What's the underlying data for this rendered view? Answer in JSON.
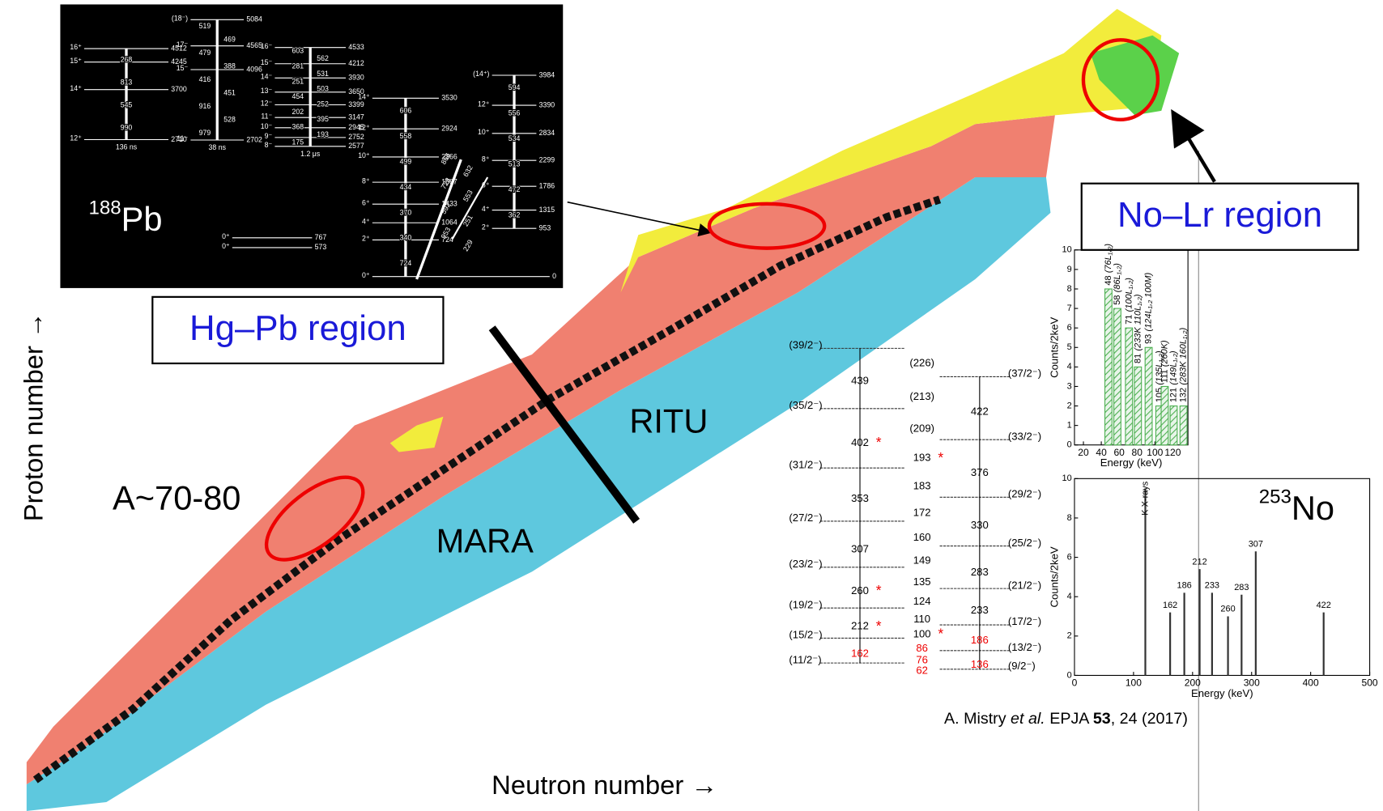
{
  "slide": {
    "axis_labels": {
      "y": "Proton number →",
      "x": "Neutron number →"
    },
    "regions": {
      "hg_pb": "Hg–Pb region",
      "no_lr": "No–Lr region",
      "a70": "A~70-80",
      "ritu": "RITU",
      "mara": "MARA"
    },
    "pb188": {
      "mass": "188",
      "symbol": "Pb",
      "columns": [
        {
          "levels": [
            {
              "spin": "16⁺",
              "energy": 4512
            },
            {
              "spin": "15⁺",
              "energy": 4245
            },
            {
              "spin": "14⁺",
              "energy": 3700
            },
            {
              "spin": "12⁺",
              "energy": 2710
            }
          ],
          "gammas": [
            "268",
            "813",
            "545",
            "990"
          ],
          "note": "136 ns"
        },
        {
          "levels": [
            {
              "spin": "(18⁻)",
              "energy": 5084
            },
            {
              "spin": "17⁻",
              "energy": 4565
            },
            {
              "spin": "15⁻",
              "energy": 4096
            },
            {
              "spin": "11⁻",
              "energy": 2702
            }
          ],
          "gammas": [
            "519",
            "469",
            "479",
            "388",
            "416",
            "451",
            "916",
            "528",
            "979"
          ],
          "note": "38 ns"
        },
        {
          "levels": [
            {
              "spin": "16⁻",
              "energy": 4533
            },
            {
              "spin": "15⁻",
              "energy": 4212
            },
            {
              "spin": "14⁻",
              "energy": 3930
            },
            {
              "spin": "13⁻",
              "energy": 3650
            },
            {
              "spin": "12⁻",
              "energy": 3399
            },
            {
              "spin": "11⁻",
              "energy": 3147
            },
            {
              "spin": "10⁻",
              "energy": 2945
            },
            {
              "spin": "9⁻",
              "energy": 2752
            },
            {
              "spin": "8⁻",
              "energy": 2577
            }
          ],
          "gammas": [
            "603",
            "562",
            "281",
            "531",
            "251",
            "503",
            "454",
            "252",
            "202",
            "395",
            "368",
            "193",
            "175"
          ],
          "note": "1.2 μs"
        },
        {
          "levels": [
            {
              "spin": "14⁺",
              "energy": 3530
            },
            {
              "spin": "12⁺",
              "energy": 2924
            },
            {
              "spin": "10⁺",
              "energy": 2366
            },
            {
              "spin": "8⁺",
              "energy": 1867
            },
            {
              "spin": "6⁺",
              "energy": 1433
            },
            {
              "spin": "4⁺",
              "energy": 1064
            },
            {
              "spin": "2⁺",
              "energy": 724
            },
            {
              "spin": "0⁺",
              "energy": 0
            }
          ],
          "gammas": [
            "606",
            "558",
            "499",
            "434",
            "370",
            "340",
            "724"
          ]
        },
        {
          "levels": [
            {
              "spin": "(14⁺)",
              "energy": 3984
            },
            {
              "spin": "12⁺",
              "energy": 3390
            },
            {
              "spin": "10⁺",
              "energy": 2834
            },
            {
              "spin": "8⁺",
              "energy": 2299
            },
            {
              "spin": "6⁺",
              "energy": 1786
            },
            {
              "spin": "4⁺",
              "energy": 1315
            },
            {
              "spin": "2⁺",
              "energy": 953
            }
          ],
          "gammas": [
            "594",
            "556",
            "534",
            "513",
            "472",
            "362"
          ]
        },
        {
          "levels": [
            {
              "spin": "0⁺",
              "energy": 767
            },
            {
              "spin": "0⁺",
              "energy": 573
            }
          ],
          "gammas": []
        }
      ],
      "crossing_gammas": [
        "866",
        "632",
        "723",
        "553",
        "592",
        "251",
        "953",
        "229"
      ]
    },
    "no253": {
      "mass": "253",
      "symbol": "No"
    },
    "level_scheme": {
      "spins_left": [
        "(39/2⁻)",
        "(35/2⁻)",
        "(31/2⁻)",
        "(27/2⁻)",
        "(23/2⁻)",
        "(19/2⁻)",
        "(15/2⁻)",
        "(11/2⁻)"
      ],
      "gammas_left": [
        {
          "label": "439"
        },
        {
          "label": "402",
          "marked": true
        },
        {
          "label": "353"
        },
        {
          "label": "307"
        },
        {
          "label": "260",
          "marked": true
        },
        {
          "label": "212",
          "marked": true
        },
        {
          "label": "162",
          "highlight": true
        }
      ],
      "gammas_middle": [
        {
          "label": "(226)"
        },
        {
          "label": "(213)"
        },
        {
          "label": "(209)"
        },
        {
          "label": "193",
          "marked": true
        },
        {
          "label": "183"
        },
        {
          "label": "172"
        },
        {
          "label": "160"
        },
        {
          "label": "149"
        },
        {
          "label": "135"
        },
        {
          "label": "124"
        },
        {
          "label": "110"
        },
        {
          "label": "100",
          "marked": true
        },
        {
          "label": "86",
          "highlight": true
        },
        {
          "label": "76",
          "highlight": true
        },
        {
          "label": "62",
          "highlight": true
        }
      ],
      "spins_right": [
        "(37/2⁻)",
        "(33/2⁻)",
        "(29/2⁻)",
        "(25/2⁻)",
        "(21/2⁻)",
        "(17/2⁻)",
        "(13/2⁻)",
        "(9/2⁻)"
      ],
      "gammas_right": [
        {
          "label": "422"
        },
        {
          "label": "376"
        },
        {
          "label": "330"
        },
        {
          "label": "283"
        },
        {
          "label": "233"
        },
        {
          "label": "186",
          "highlight": true
        },
        {
          "label": "136",
          "highlight": true
        }
      ]
    },
    "spectrum_top": {
      "y_label": "Counts/2keV",
      "x_label": "Energy (keV)",
      "xlim": [
        10,
        137
      ],
      "ylim": [
        0,
        10
      ],
      "xticks": [
        20,
        40,
        60,
        80,
        100,
        120
      ],
      "yticks": [
        0,
        1,
        2,
        3,
        4,
        5,
        6,
        7,
        8,
        9,
        10
      ],
      "color": "#4caf50",
      "peaks": [
        {
          "energy": 48,
          "counts": 8,
          "label": "(76L₁,₂)"
        },
        {
          "energy": 58,
          "counts": 7,
          "label": "(86L₁,₂)"
        },
        {
          "energy": 71,
          "counts": 6,
          "label": "(100L₁,₂)"
        },
        {
          "energy": 81,
          "counts": 4,
          "label": "(233K 110L₁,₂)"
        },
        {
          "energy": 93,
          "counts": 5,
          "label": "(124L₁,₂ 100M)"
        },
        {
          "energy": 105,
          "counts": 2,
          "label": "(135L₁,₂)"
        },
        {
          "energy": 111,
          "counts": 3,
          "label": "(260K)"
        },
        {
          "energy": 121,
          "counts": 2,
          "label": "(149L₁,₂)"
        },
        {
          "energy": 132,
          "counts": 2,
          "label": "(283K 160L₁,₂)"
        }
      ]
    },
    "spectrum_bottom": {
      "y_label": "Counts/2keV",
      "x_label": "Energy (keV)",
      "xlim": [
        0,
        500
      ],
      "ylim": [
        0,
        10
      ],
      "xticks": [
        0,
        100,
        200,
        300,
        400,
        500
      ],
      "yticks": [
        0,
        2,
        4,
        6,
        8,
        10
      ],
      "peaks": [
        {
          "energy": 120,
          "counts": 9.5,
          "label": "K X-rays"
        },
        {
          "energy": 162,
          "counts": 3.2,
          "label": "162"
        },
        {
          "energy": 186,
          "counts": 4.2,
          "label": "186"
        },
        {
          "energy": 212,
          "counts": 5.4,
          "label": "212"
        },
        {
          "energy": 233,
          "counts": 4.2,
          "label": "233"
        },
        {
          "energy": 260,
          "counts": 3,
          "label": "260"
        },
        {
          "energy": 283,
          "counts": 4.1,
          "label": "283"
        },
        {
          "energy": 307,
          "counts": 6.3,
          "label": "307"
        },
        {
          "energy": 422,
          "counts": 3.2,
          "label": "422"
        }
      ]
    },
    "citation": [
      "A. Mistry ",
      "et al.",
      " EPJA ",
      "53",
      ", 24 (2017)"
    ]
  }
}
